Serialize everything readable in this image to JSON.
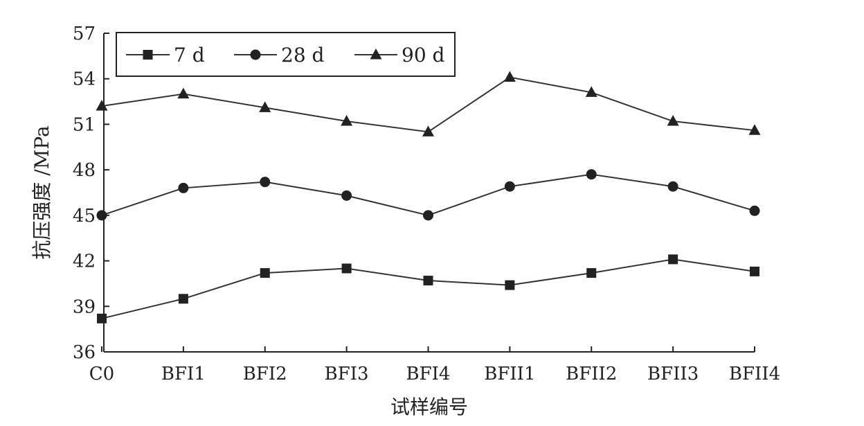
{
  "chart_data": {
    "type": "line",
    "title": "",
    "xlabel": "试样编号",
    "ylabel": "抗压强度 /MPa",
    "categories": [
      "C0",
      "BFI1",
      "BFI2",
      "BFI3",
      "BFI4",
      "BFII1",
      "BFII2",
      "BFII3",
      "BFII4"
    ],
    "ylim": [
      36,
      57
    ],
    "yticks": [
      36,
      39,
      42,
      45,
      48,
      51,
      54,
      57
    ],
    "legend_position": "top-left",
    "grid": false,
    "series": [
      {
        "name": "7 d",
        "marker": "square",
        "values": [
          38.2,
          39.5,
          41.2,
          41.5,
          40.7,
          40.4,
          41.2,
          42.1,
          41.3
        ]
      },
      {
        "name": "28 d",
        "marker": "circle",
        "values": [
          45.0,
          46.8,
          47.2,
          46.3,
          45.0,
          46.9,
          47.7,
          46.9,
          45.3
        ]
      },
      {
        "name": "90 d",
        "marker": "triangle",
        "values": [
          52.2,
          53.0,
          52.1,
          51.2,
          50.5,
          54.1,
          53.1,
          51.2,
          50.6
        ]
      }
    ],
    "colors": {
      "line": "#333333",
      "marker": "#222222",
      "axis": "#222222"
    }
  }
}
